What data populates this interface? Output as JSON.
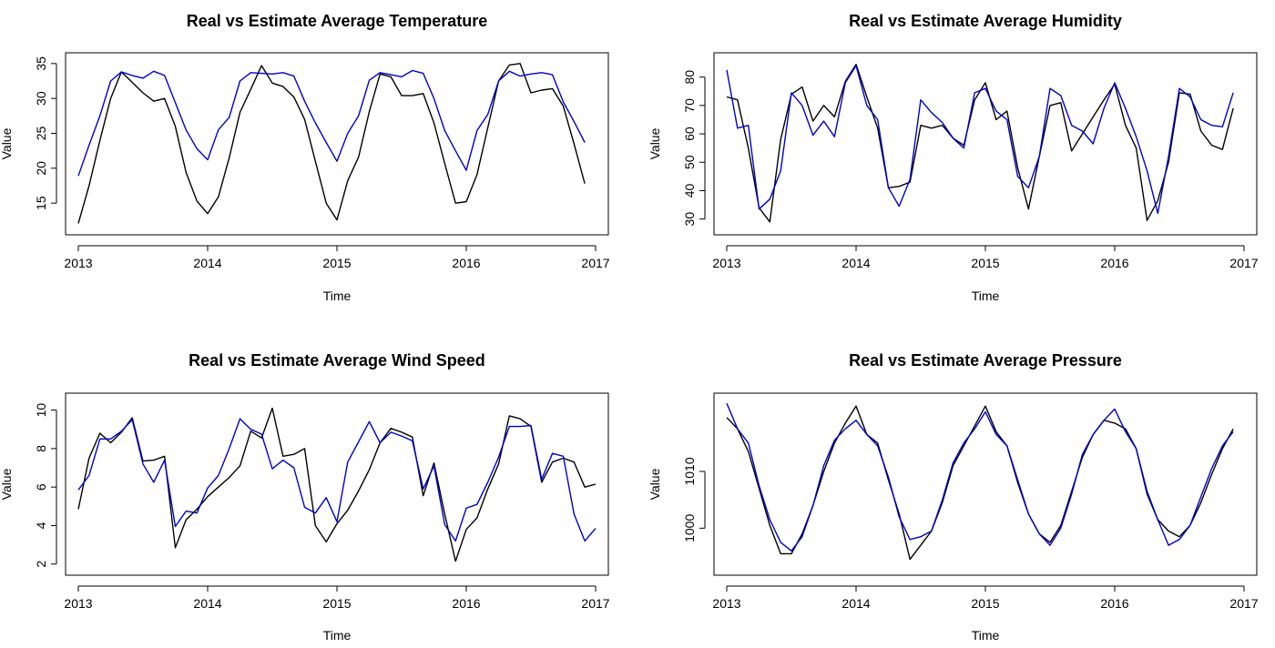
{
  "chart_data": [
    {
      "type": "line",
      "title": "Real vs Estimate Average Temperature",
      "xlabel": "Time",
      "ylabel": "Value",
      "xlim": [
        2013,
        2017
      ],
      "ylim": [
        11.5,
        35.5
      ],
      "x_ticks": [
        "2013",
        "2014",
        "2015",
        "2016",
        "2017"
      ],
      "y_ticks": [
        "15",
        "20",
        "25",
        "30",
        "35"
      ],
      "x_start": 2013,
      "x_step": 0.08333,
      "series": [
        {
          "color": "#000000",
          "values": [
            12.1,
            17.5,
            24.0,
            30.0,
            33.8,
            32.3,
            30.8,
            29.6,
            30.0,
            26.0,
            19.4,
            15.3,
            13.5,
            15.9,
            21.5,
            28.0,
            31.3,
            34.7,
            32.2,
            31.7,
            30.2,
            27.0,
            21.0,
            15.0,
            12.6,
            18.2,
            21.6,
            28.1,
            33.5,
            33.1,
            30.4,
            30.4,
            30.7,
            26.5,
            20.7,
            15.0,
            15.2,
            19.1,
            25.8,
            32.5,
            34.8,
            35.0,
            30.8,
            31.2,
            31.4,
            28.9,
            23.5,
            17.8
          ]
        },
        {
          "color": "#0000cc",
          "values": [
            18.9,
            23.3,
            27.5,
            32.5,
            33.8,
            33.3,
            32.9,
            33.9,
            33.3,
            29.4,
            25.5,
            22.8,
            21.2,
            25.5,
            27.3,
            32.5,
            33.7,
            33.6,
            33.5,
            33.7,
            33.2,
            29.6,
            26.5,
            23.7,
            21.0,
            25.0,
            27.5,
            32.6,
            33.7,
            33.4,
            33.1,
            34.0,
            33.6,
            30.0,
            25.4,
            22.5,
            19.7,
            25.4,
            27.7,
            32.5,
            33.9,
            33.2,
            33.5,
            33.7,
            33.4,
            29.5,
            26.7,
            23.7
          ]
        }
      ]
    },
    {
      "type": "line",
      "title": "Real vs Estimate Average Humidity",
      "xlabel": "Time",
      "ylabel": "Value",
      "xlim": [
        2013,
        2017
      ],
      "ylim": [
        27,
        86
      ],
      "x_ticks": [
        "2013",
        "2014",
        "2015",
        "2016",
        "2017"
      ],
      "y_ticks": [
        "30",
        "40",
        "50",
        "60",
        "70",
        "80"
      ],
      "x_start": 2013,
      "x_step": 0.08333,
      "series": [
        {
          "color": "#000000",
          "values": [
            73,
            72,
            55,
            34,
            29,
            58,
            74,
            76.5,
            64.5,
            70,
            66,
            78.5,
            84.5,
            73,
            62,
            41,
            41.5,
            43,
            63,
            62,
            63,
            58.5,
            56,
            72,
            78,
            65,
            68,
            48,
            33.5,
            52,
            70,
            71,
            54,
            60,
            66,
            72,
            77.5,
            63,
            55,
            29.5,
            36.5,
            50,
            74.5,
            74,
            61,
            56,
            54.5,
            69
          ]
        },
        {
          "color": "#0000cc",
          "values": [
            82.5,
            62,
            63,
            33.5,
            37,
            47,
            74.5,
            70,
            59.5,
            64.5,
            59,
            78,
            84,
            70,
            65,
            41,
            34.5,
            44,
            72,
            67.5,
            64,
            58.5,
            55,
            74.5,
            76,
            68,
            65,
            45,
            41,
            52,
            76,
            73.5,
            63,
            61,
            56.5,
            69,
            78,
            69,
            59,
            47,
            32,
            52,
            76,
            73,
            65,
            63,
            62.5,
            74.5
          ]
        }
      ]
    },
    {
      "type": "line",
      "title": "Real vs Estimate Average Wind Speed",
      "xlabel": "Time",
      "ylabel": "Value",
      "xlim": [
        2013,
        2017
      ],
      "ylim": [
        1.8,
        10.5
      ],
      "x_ticks": [
        "2013",
        "2014",
        "2015",
        "2016",
        "2017"
      ],
      "y_ticks": [
        "2",
        "4",
        "6",
        "8",
        "10"
      ],
      "x_start": 2013,
      "x_step": 0.08333,
      "series": [
        {
          "color": "#000000",
          "values": [
            4.85,
            7.5,
            8.8,
            8.3,
            8.85,
            9.6,
            7.35,
            7.4,
            7.6,
            2.85,
            4.3,
            4.85,
            5.5,
            6.0,
            6.5,
            7.1,
            8.9,
            8.55,
            10.1,
            7.6,
            7.7,
            8.0,
            4.0,
            3.15,
            4.1,
            4.8,
            5.8,
            6.9,
            8.3,
            9.05,
            8.85,
            8.6,
            5.55,
            7.25,
            4.6,
            2.15,
            3.8,
            4.4,
            5.9,
            7.2,
            9.7,
            9.55,
            9.15,
            6.25,
            7.3,
            7.5,
            7.3,
            6.0,
            6.15
          ]
        },
        {
          "color": "#0000cc",
          "values": [
            5.85,
            6.6,
            8.5,
            8.5,
            8.9,
            9.5,
            7.2,
            6.25,
            7.4,
            3.95,
            4.75,
            4.65,
            5.95,
            6.6,
            8.0,
            9.55,
            9.0,
            8.75,
            6.95,
            7.4,
            7.0,
            4.95,
            4.65,
            5.45,
            4.2,
            7.3,
            8.35,
            9.4,
            8.3,
            8.85,
            8.65,
            8.4,
            5.9,
            7.1,
            4.05,
            3.2,
            4.9,
            5.1,
            6.25,
            7.55,
            9.15,
            9.15,
            9.2,
            6.4,
            7.75,
            7.6,
            4.6,
            3.2,
            3.85
          ]
        }
      ]
    },
    {
      "type": "line",
      "title": "Real vs Estimate Average Pressure",
      "xlabel": "Time",
      "ylabel": "Value",
      "xlim": [
        2013,
        2017
      ],
      "ylim": [
        993,
        1022.5
      ],
      "x_ticks": [
        "2013",
        "2014",
        "2015",
        "2016",
        "2017"
      ],
      "y_ticks": [
        "1000",
        "1010"
      ],
      "x_start": 2013,
      "x_step": 0.08333,
      "series": [
        {
          "color": "#000000",
          "values": [
            1019.5,
            1017.5,
            1013.5,
            1007,
            1000.5,
            995.5,
            995.5,
            999,
            1004,
            1010,
            1015,
            1018.5,
            1021.5,
            1016.5,
            1015,
            1008.5,
            1002.5,
            994.5,
            997,
            999.5,
            1004.5,
            1011,
            1014.5,
            1018,
            1021.5,
            1017,
            1014.5,
            1008,
            1002.5,
            999,
            997.5,
            1000.5,
            1006.5,
            1012.5,
            1016.5,
            1019,
            1018.5,
            1017.5,
            1014,
            1006,
            1001.5,
            999.5,
            998.5,
            1000.5,
            1004.5,
            1009.5,
            1014,
            1017.5
          ]
        },
        {
          "color": "#0000cc",
          "values": [
            1022,
            1017.5,
            1015,
            1007.5,
            1001.5,
            997.5,
            996,
            998.5,
            1004,
            1011,
            1015.5,
            1017.5,
            1019,
            1016.5,
            1014.5,
            1009,
            1002,
            998,
            998.5,
            999.5,
            1005,
            1011.5,
            1015,
            1017.5,
            1020.5,
            1016.5,
            1014.5,
            1008.5,
            1002.5,
            999,
            997,
            1000,
            1006,
            1013,
            1016.5,
            1019,
            1021,
            1017,
            1014,
            1006.5,
            1001.5,
            997,
            998,
            1000.5,
            1005.5,
            1010.5,
            1014.5,
            1017
          ]
        }
      ]
    }
  ]
}
